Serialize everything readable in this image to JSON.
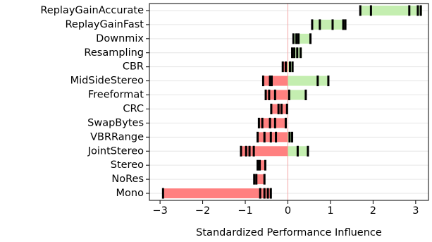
{
  "chart_data": {
    "type": "bar",
    "subtype": "horizontal-range-with-markers",
    "title": "",
    "xlabel": "Standardized Performance Influence",
    "ylabel": "",
    "xlim": [
      -3.25,
      3.3
    ],
    "xticks": [
      -3,
      -2,
      -1,
      0,
      1,
      2,
      3
    ],
    "xtick_labels": [
      "−3",
      "−2",
      "−1",
      "0",
      "1",
      "2",
      "3"
    ],
    "grid": "horizontal",
    "zero_line": true,
    "colors": {
      "negative": "#ff8080",
      "positive": "#c4eeb0",
      "marker": "#000000",
      "zero_line": "#f4a6a6",
      "grid": "#e6e6e6"
    },
    "categories": [
      "ReplayGainAccurate",
      "ReplayGainFast",
      "Downmix",
      "Resampling",
      "CBR",
      "MidSideStereo",
      "Freeformat",
      "CRC",
      "SwapBytes",
      "VBRRange",
      "JointStereo",
      "Stereo",
      "NoRes",
      "Mono"
    ],
    "rows": [
      {
        "name": "ReplayGainAccurate",
        "min": 1.68,
        "max": 3.15,
        "markers": [
          1.7,
          1.95,
          2.85,
          3.05,
          3.12
        ]
      },
      {
        "name": "ReplayGainFast",
        "min": 0.55,
        "max": 1.37,
        "markers": [
          0.57,
          0.75,
          1.05,
          1.3,
          1.35
        ]
      },
      {
        "name": "Downmix",
        "min": 0.12,
        "max": 0.55,
        "markers": [
          0.13,
          0.2,
          0.25,
          0.53
        ]
      },
      {
        "name": "Resampling",
        "min": 0.08,
        "max": 0.33,
        "markers": [
          0.1,
          0.15,
          0.22,
          0.3
        ]
      },
      {
        "name": "CBR",
        "min": -0.13,
        "max": 0.12,
        "markers": [
          -0.12,
          -0.05,
          0.05,
          0.11
        ]
      },
      {
        "name": "MidSideStereo",
        "min": -0.6,
        "max": 0.97,
        "markers": [
          -0.58,
          -0.42,
          -0.38,
          0.7,
          0.95
        ]
      },
      {
        "name": "Freeformat",
        "min": -0.53,
        "max": 0.43,
        "markers": [
          -0.52,
          -0.44,
          -0.3,
          0.03,
          0.42
        ]
      },
      {
        "name": "CRC",
        "min": -0.4,
        "max": 0.0,
        "markers": [
          -0.39,
          -0.22,
          -0.15,
          -0.02
        ]
      },
      {
        "name": "SwapBytes",
        "min": -0.7,
        "max": -0.03,
        "markers": [
          -0.68,
          -0.6,
          -0.42,
          -0.3,
          -0.05
        ]
      },
      {
        "name": "VBRRange",
        "min": -0.72,
        "max": 0.12,
        "markers": [
          -0.71,
          -0.55,
          -0.4,
          -0.28,
          0.04,
          0.1
        ]
      },
      {
        "name": "JointStereo",
        "min": -1.12,
        "max": 0.48,
        "markers": [
          -1.1,
          -0.98,
          -0.9,
          -0.8,
          0.23,
          0.47
        ]
      },
      {
        "name": "Stereo",
        "min": -0.72,
        "max": -0.52,
        "markers": [
          -0.71,
          -0.66,
          -0.53
        ]
      },
      {
        "name": "NoRes",
        "min": -0.8,
        "max": -0.53,
        "markers": [
          -0.79,
          -0.74,
          -0.55
        ]
      },
      {
        "name": "Mono",
        "min": -2.95,
        "max": -0.38,
        "markers": [
          -2.93,
          -0.65,
          -0.55,
          -0.47,
          -0.4
        ]
      }
    ]
  }
}
